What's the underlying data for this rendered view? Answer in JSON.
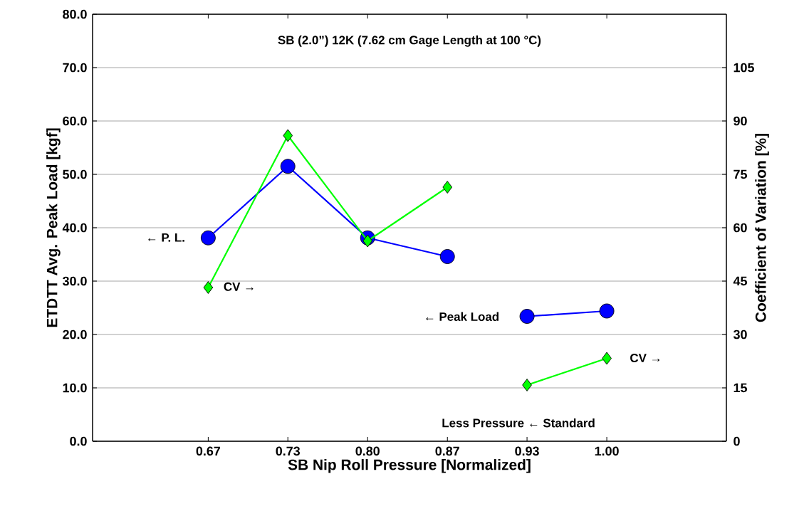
{
  "chart_data": {
    "type": "line",
    "title": "SB (2.0”) 12K (7.62 cm Gage Length at 100 °C)",
    "xlabel": "SB Nip Roll Pressure [Normalized]",
    "ylabel": "ETDTT Avg. Peak Load [kgf]",
    "y2label": "Coefficient of Variation [%]",
    "xlim": [
      0.57,
      1.1
    ],
    "xticks": [
      {
        "value": 0.6667,
        "label": "0.67"
      },
      {
        "value": 0.7333,
        "label": "0.73"
      },
      {
        "value": 0.8,
        "label": "0.80"
      },
      {
        "value": 0.8667,
        "label": "0.87"
      },
      {
        "value": 0.9333,
        "label": "0.93"
      },
      {
        "value": 1.0,
        "label": "1.00"
      }
    ],
    "ylim": [
      0,
      80
    ],
    "yticks": [
      {
        "value": 0,
        "label": "0.0"
      },
      {
        "value": 10,
        "label": "10.0"
      },
      {
        "value": 20,
        "label": "20.0"
      },
      {
        "value": 30,
        "label": "30.0"
      },
      {
        "value": 40,
        "label": "40.0"
      },
      {
        "value": 50,
        "label": "50.0"
      },
      {
        "value": 60,
        "label": "60.0"
      },
      {
        "value": 70,
        "label": "70.0"
      },
      {
        "value": 80,
        "label": "80.0"
      }
    ],
    "y2lim": [
      0,
      120
    ],
    "y2ticks": [
      0,
      15,
      30,
      45,
      60,
      75,
      90,
      105
    ],
    "grid": "y",
    "series": [
      {
        "x": [
          0.6667,
          0.7333,
          0.8,
          0.8667
        ],
        "values": [
          38.1,
          51.5,
          38.1,
          34.6
        ],
        "color": "#0000ff",
        "marker": "circle"
      },
      {
        "x": [
          0.9333,
          1.0
        ],
        "values": [
          23.4,
          24.4
        ],
        "color": "#0000ff",
        "marker": "circle"
      },
      {
        "x": [
          0.6667,
          0.7333,
          0.8,
          0.8667
        ],
        "values": [
          43.2,
          85.9,
          56.3,
          71.4
        ],
        "color": "#00ff00",
        "marker": "diamond",
        "axis": "y2"
      },
      {
        "x": [
          0.9333,
          1.0
        ],
        "values": [
          15.8,
          23.3
        ],
        "color": "#00ff00",
        "marker": "diamond",
        "axis": "y2"
      }
    ],
    "annotations": [
      "← P. L.",
      "CV →",
      "← Peak Load",
      "CV →",
      "Less Pressure  ←   Standard"
    ]
  }
}
